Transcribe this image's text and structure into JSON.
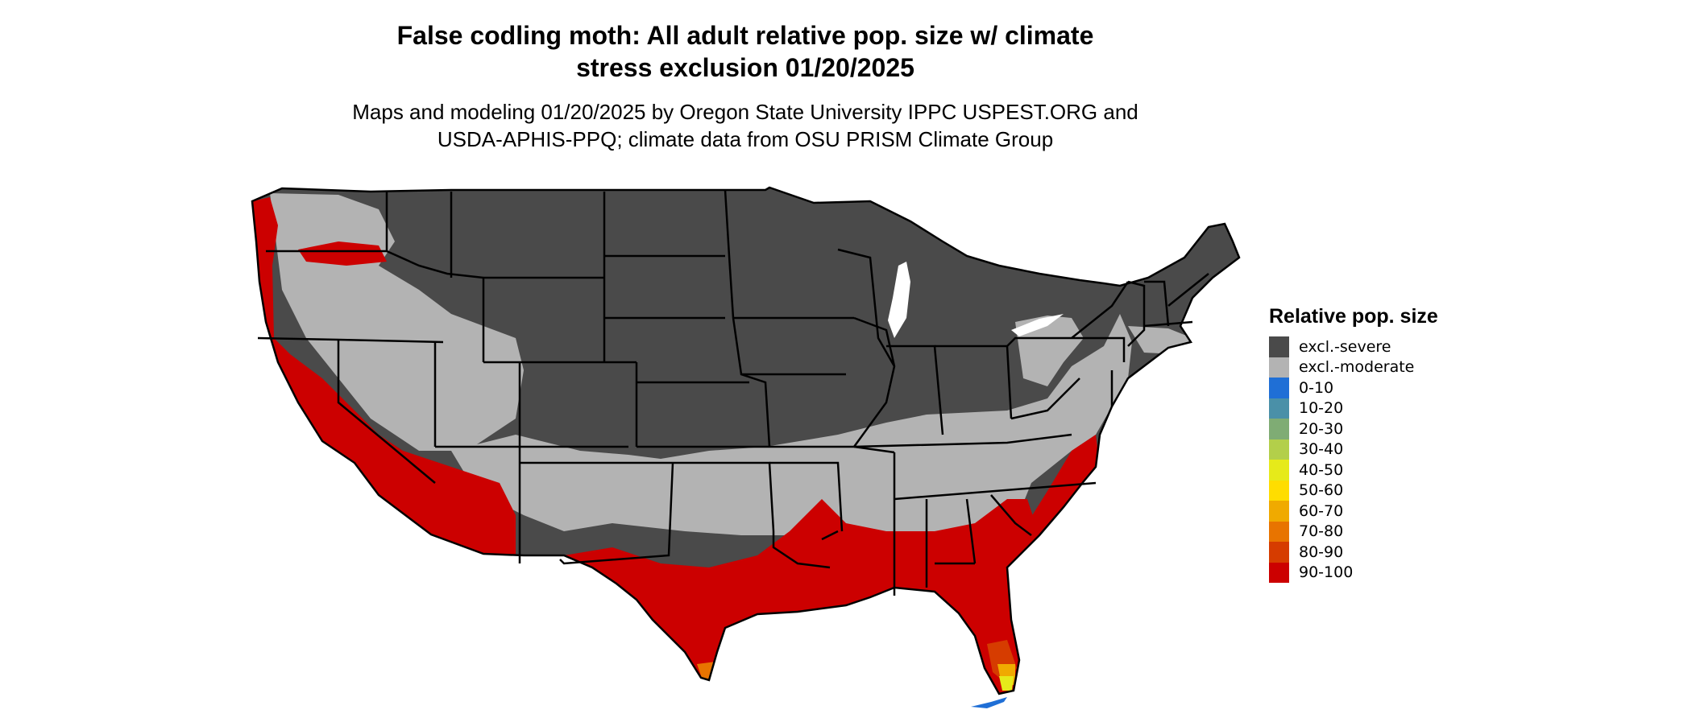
{
  "title_line1": "False codling moth: All adult relative pop. size w/ climate",
  "title_line2": "stress exclusion 01/20/2025",
  "subtitle_line1": "Maps and modeling 01/20/2025 by Oregon State University IPPC USPEST.ORG and",
  "subtitle_line2": "USDA-APHIS-PPQ; climate data from OSU PRISM Climate Group",
  "legend": {
    "title": "Relative pop. size",
    "items": [
      {
        "label": "excl.-severe",
        "color": "#4a4a4a"
      },
      {
        "label": "excl.-moderate",
        "color": "#b3b3b3"
      },
      {
        "label": "0-10",
        "color": "#1f6fd6"
      },
      {
        "label": "10-20",
        "color": "#4a90a8"
      },
      {
        "label": "20-30",
        "color": "#7fac74"
      },
      {
        "label": "30-40",
        "color": "#b3cf4a"
      },
      {
        "label": "40-50",
        "color": "#e6ea1a"
      },
      {
        "label": "50-60",
        "color": "#ffdd00"
      },
      {
        "label": "60-70",
        "color": "#f0aa00"
      },
      {
        "label": "70-80",
        "color": "#e87400"
      },
      {
        "label": "80-90",
        "color": "#d63c00"
      },
      {
        "label": "90-100",
        "color": "#cc0000"
      }
    ]
  }
}
